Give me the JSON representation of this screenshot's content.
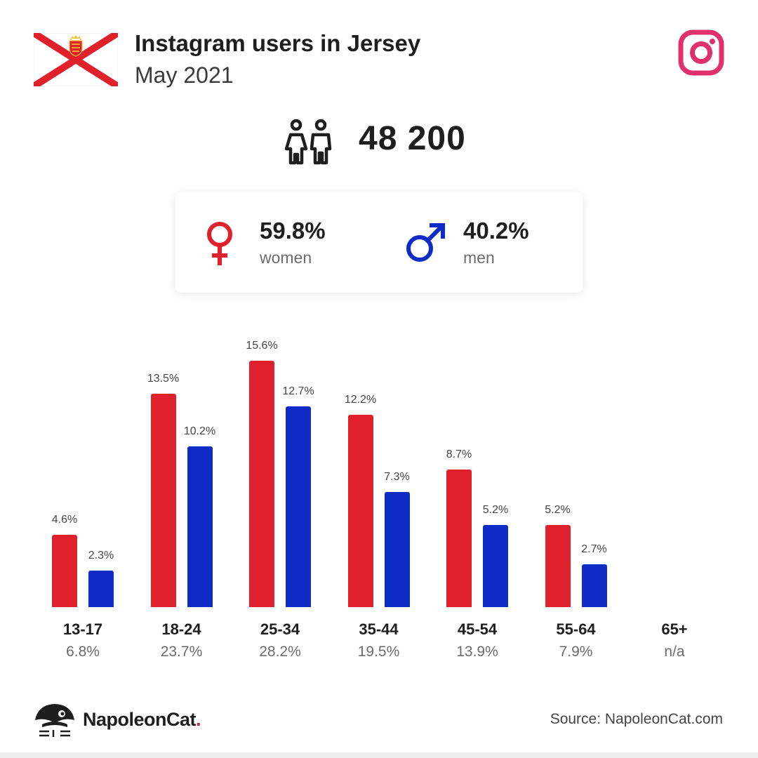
{
  "header": {
    "title": "Instagram users in Jersey",
    "subtitle": "May 2021"
  },
  "total_users": "48 200",
  "gender": {
    "women": {
      "value": "59.8%",
      "label": "women"
    },
    "men": {
      "value": "40.2%",
      "label": "men"
    }
  },
  "colors": {
    "women": "#e0202a",
    "men": "#0f2bc5",
    "instagram": "#e1306c"
  },
  "icons": [
    "jersey-flag-icon",
    "instagram-logo-icon",
    "people-icon",
    "female-symbol-icon",
    "male-symbol-icon",
    "napoleoncat-logo-icon"
  ],
  "chart_data": {
    "type": "bar",
    "categories": [
      "13-17",
      "18-24",
      "25-34",
      "35-44",
      "45-54",
      "55-64",
      "65+"
    ],
    "category_totals": [
      "6.8%",
      "23.7%",
      "28.2%",
      "19.5%",
      "13.9%",
      "7.9%",
      "n/a"
    ],
    "series": [
      {
        "values": [
          4.6,
          13.5,
          15.6,
          12.2,
          8.7,
          5.2,
          null
        ],
        "labels": [
          "4.6%",
          "13.5%",
          "15.6%",
          "12.2%",
          "8.7%",
          "5.2%",
          ""
        ],
        "color": "#e0202a"
      },
      {
        "values": [
          2.3,
          10.2,
          12.7,
          7.3,
          5.2,
          2.7,
          null
        ],
        "labels": [
          "2.3%",
          "10.2%",
          "12.7%",
          "7.3%",
          "5.2%",
          "2.7%",
          ""
        ],
        "color": "#0f2bc5"
      }
    ],
    "unit": "%",
    "ylim": [
      0,
      15.6
    ],
    "grid": false,
    "legend": "none"
  },
  "footer": {
    "brand_name": "NapoleonCat",
    "brand_dot": ".",
    "source": "Source: NapoleonCat.com"
  }
}
